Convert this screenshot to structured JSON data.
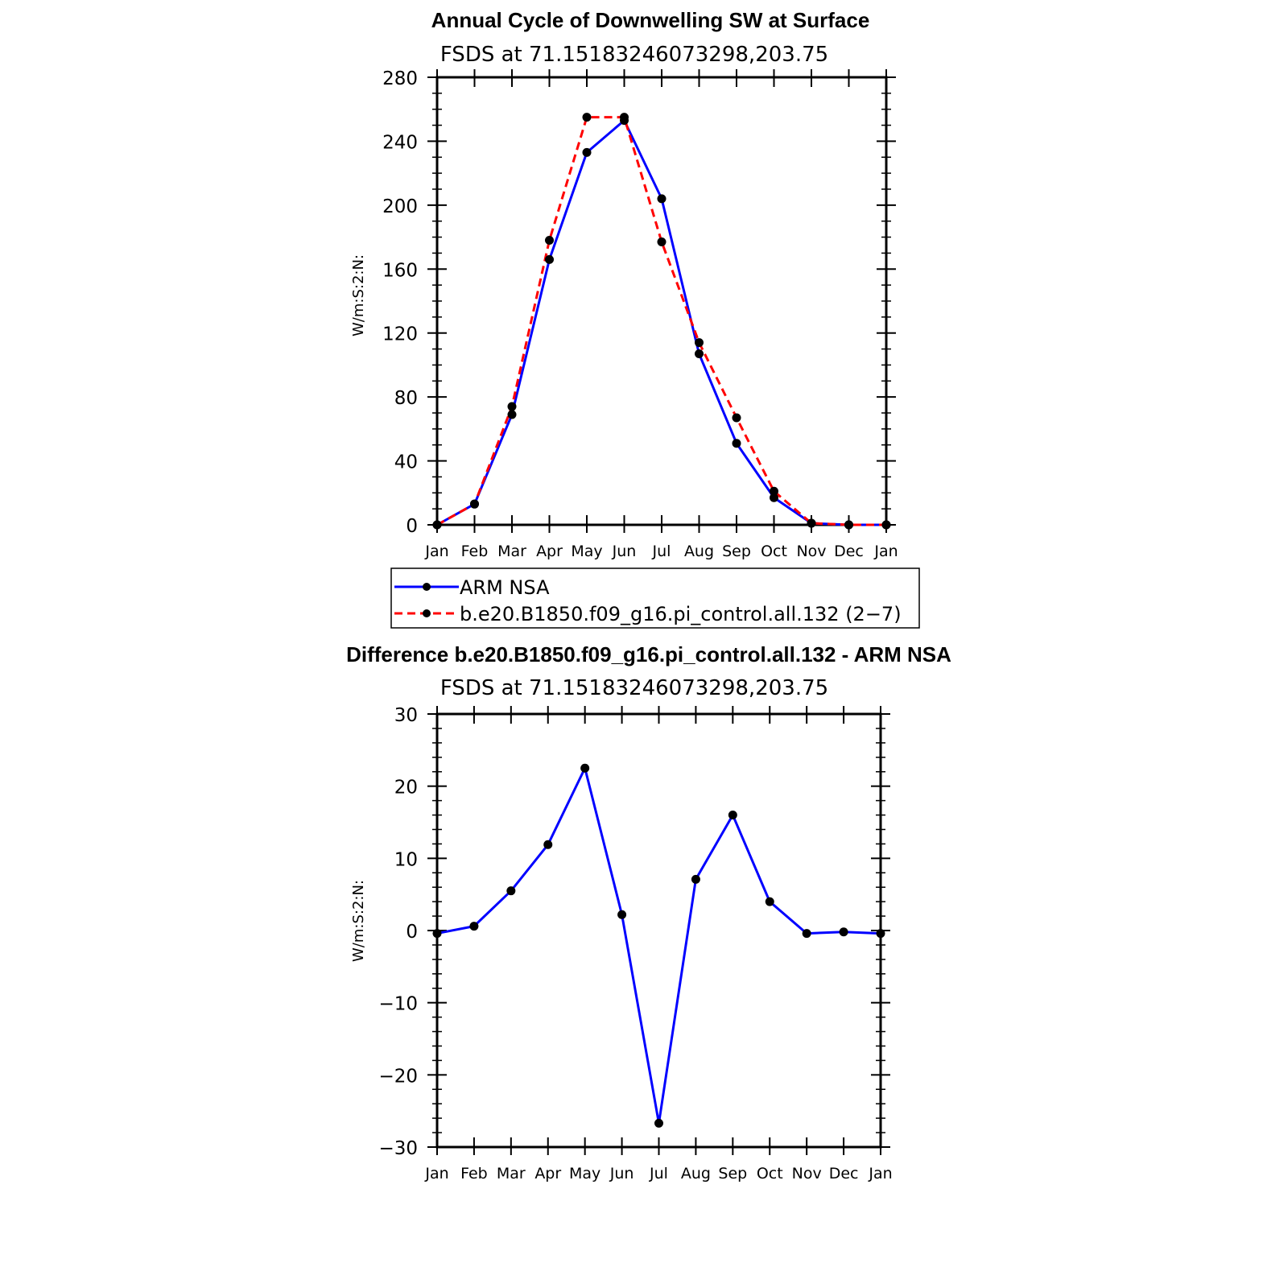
{
  "chart_data": [
    {
      "type": "line",
      "title": "Annual Cycle of Downwelling SW at Surface",
      "subtitle": "FSDS at 71.15183246073298,203.75",
      "ylabel": "W/m:S:2:N:",
      "xlabel": "",
      "categories": [
        "Jan",
        "Feb",
        "Mar",
        "Apr",
        "May",
        "Jun",
        "Jul",
        "Aug",
        "Sep",
        "Oct",
        "Nov",
        "Dec",
        "Jan"
      ],
      "ylim": [
        0,
        280
      ],
      "yticks": [
        "280",
        "240",
        "200",
        "160",
        "120",
        "80",
        "40",
        "0"
      ],
      "series": [
        {
          "name": "ARM NSA",
          "color": "#0000ff",
          "dash": "solid",
          "values": [
            0,
            13,
            69,
            166,
            233,
            253,
            204,
            107,
            51,
            17,
            1,
            0,
            0
          ]
        },
        {
          "name": "b.e20.B1850.f09_g16.pi_control.all.132 (2−7)",
          "color": "#ff0000",
          "dash": "dashed",
          "values": [
            0,
            13,
            74,
            178,
            255,
            255,
            177,
            114,
            67,
            21,
            1,
            0,
            0
          ]
        }
      ],
      "legend": "below"
    },
    {
      "type": "line",
      "title": "Difference b.e20.B1850.f09_g16.pi_control.all.132 - ARM NSA",
      "subtitle": "FSDS at 71.15183246073298,203.75",
      "ylabel": "W/m:S:2:N:",
      "xlabel": "",
      "categories": [
        "Jan",
        "Feb",
        "Mar",
        "Apr",
        "May",
        "Jun",
        "Jul",
        "Aug",
        "Sep",
        "Oct",
        "Nov",
        "Dec",
        "Jan"
      ],
      "ylim": [
        -30,
        30
      ],
      "yticks": [
        "30",
        "20",
        "10",
        "0",
        "−10",
        "−20",
        "−30"
      ],
      "series": [
        {
          "color": "#0000ff",
          "dash": "solid",
          "values": [
            -0.4,
            0.6,
            5.5,
            11.9,
            22.5,
            2.2,
            -26.7,
            7.1,
            16.0,
            4.0,
            -0.4,
            -0.2,
            -0.4
          ]
        }
      ]
    }
  ]
}
